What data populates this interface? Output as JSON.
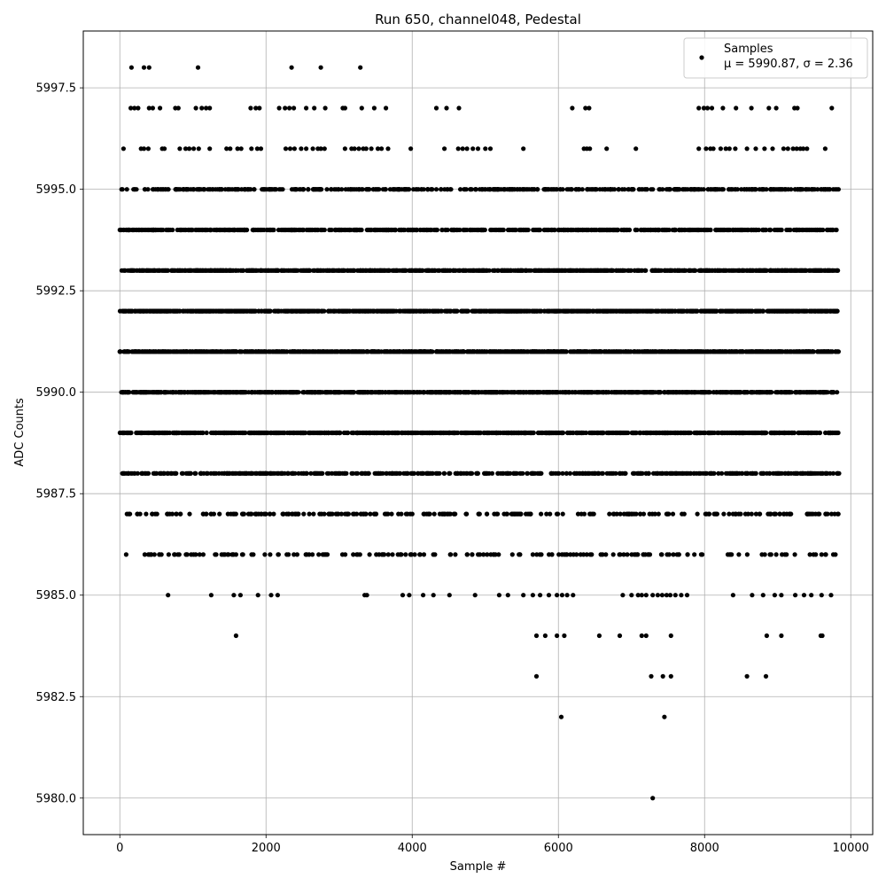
{
  "chart_data": {
    "type": "scatter",
    "title": "Run 650, channel048, Pedestal",
    "xlabel": "Sample #",
    "ylabel": "ADC Counts",
    "xlim": [
      -500,
      10300
    ],
    "ylim": [
      5979.1,
      5998.9
    ],
    "xticks": [
      0,
      2000,
      4000,
      6000,
      8000,
      10000
    ],
    "xtick_labels": [
      "0",
      "2000",
      "4000",
      "6000",
      "8000",
      "10000"
    ],
    "yticks": [
      5980.0,
      5982.5,
      5985.0,
      5987.5,
      5990.0,
      5992.5,
      5995.0,
      5997.5
    ],
    "ytick_labels": [
      "5980.0",
      "5982.5",
      "5985.0",
      "5987.5",
      "5990.0",
      "5992.5",
      "5995.0",
      "5997.5"
    ],
    "grid": true,
    "legend": {
      "placement": "upper right",
      "series_name": "Samples",
      "stats_text": "μ = 5990.87, σ = 2.36"
    },
    "series": [
      {
        "name": "Samples",
        "color": "#000000",
        "bands": [
          {
            "y": 5980,
            "x": [
              7290
            ]
          },
          {
            "y": 5982,
            "x": [
              6040,
              7450
            ]
          },
          {
            "y": 5983,
            "x": [
              5700,
              7270,
              7430,
              7540,
              8580,
              8840
            ]
          },
          {
            "y": 5984,
            "x": [
              1590,
              5700,
              5820,
              5980,
              6080,
              6560,
              6840,
              7140,
              7200,
              7540,
              8850,
              9050,
              9590,
              9610
            ]
          },
          {
            "y": 5985,
            "x": [
              660,
              1250,
              1560,
              1650,
              1890,
              2070,
              2160,
              3350,
              3380,
              3870,
              3960,
              4150,
              4290,
              4510,
              4860,
              5190,
              5310,
              5520,
              5650,
              5750,
              5870,
              5980,
              6050,
              6120,
              6200,
              6880,
              7000,
              7090,
              7140,
              7200,
              7290,
              7360,
              7420,
              7480,
              7530,
              7600,
              7680,
              7760,
              8390,
              8650,
              8800,
              8960,
              9050,
              9240,
              9360,
              9460,
              9600,
              9730
            ]
          },
          {
            "x_from": 80,
            "x_to": 9840,
            "y": 5986,
            "count": 180,
            "seed": 11
          },
          {
            "x_from": 90,
            "x_to": 9840,
            "y": 5987,
            "count": 260,
            "seed": 12
          },
          {
            "x_from": 0,
            "x_to": 9840,
            "y": 5988,
            "count": 540,
            "seed": 13
          },
          {
            "x_from": 0,
            "x_to": 9840,
            "y": 5989,
            "count": 900,
            "seed": 14
          },
          {
            "x_from": 0,
            "x_to": 9840,
            "y": 5990,
            "count": 1050,
            "seed": 15
          },
          {
            "x_from": 0,
            "x_to": 9840,
            "y": 5991,
            "count": 1200,
            "seed": 16
          },
          {
            "x_from": 0,
            "x_to": 9840,
            "y": 5992,
            "count": 1150,
            "seed": 17
          },
          {
            "x_from": 0,
            "x_to": 9840,
            "y": 5993,
            "count": 1050,
            "seed": 18
          },
          {
            "x_from": 0,
            "x_to": 9840,
            "y": 5994,
            "count": 760,
            "seed": 19
          },
          {
            "x_from": 0,
            "x_to": 9840,
            "y": 5995,
            "count": 520,
            "seed": 20
          },
          {
            "y": 5996,
            "x": [
              50,
              290,
              330,
              390,
              580,
              610,
              820,
              900,
              950,
              1010,
              1080,
              1230,
              1460,
              1510,
              1610,
              1660,
              1800,
              1880,
              1930,
              2270,
              2330,
              2390,
              2480,
              2550,
              2640,
              2710,
              2750,
              2800,
              3080,
              3170,
              3210,
              3270,
              3330,
              3370,
              3440,
              3530,
              3580,
              3670,
              3980,
              4440,
              4630,
              4690,
              4750,
              4830,
              4900,
              5000,
              5070,
              5520,
              6350,
              6390,
              6430,
              6660,
              7060,
              7920,
              8020,
              8080,
              8120,
              8220,
              8290,
              8340,
              8420,
              8580,
              8700,
              8820,
              8930,
              9080,
              9140,
              9210,
              9260,
              9310,
              9350,
              9400,
              9650
            ]
          },
          {
            "y": 5997,
            "x": [
              150,
              200,
              250,
              400,
              450,
              550,
              760,
              800,
              1040,
              1120,
              1180,
              1230,
              1790,
              1860,
              1910,
              2180,
              2260,
              2320,
              2380,
              2550,
              2660,
              2810,
              3050,
              3080,
              3310,
              3480,
              3640,
              4330,
              4470,
              4640,
              6190,
              6370,
              6420,
              7920,
              7990,
              8040,
              8100,
              8250,
              8430,
              8640,
              8880,
              8980,
              9230,
              9270,
              9740
            ]
          },
          {
            "y": 5998,
            "x": [
              160,
              330,
              400,
              1070,
              2350,
              2750,
              3290
            ]
          }
        ]
      }
    ]
  }
}
